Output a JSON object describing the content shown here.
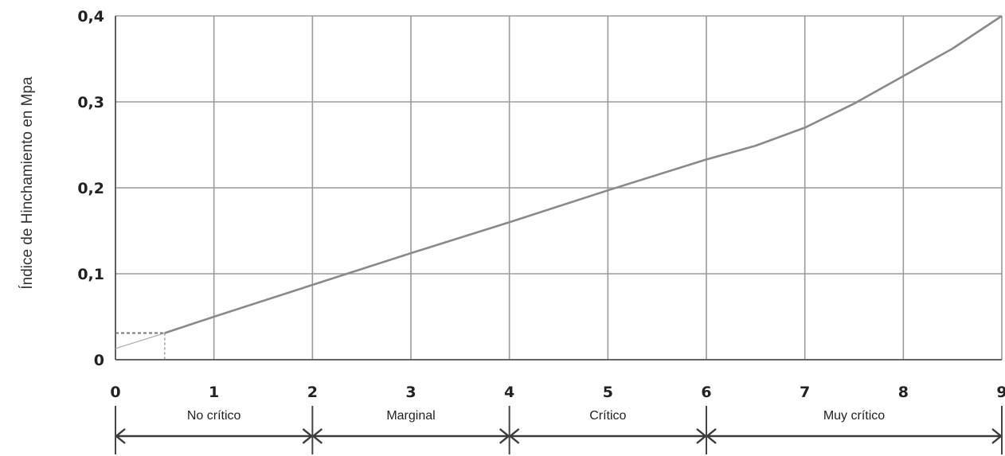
{
  "chart_data": {
    "type": "line",
    "title": "",
    "xlabel": "",
    "ylabel": "Índice de Hinchamiento en Mpa",
    "xlim": [
      0,
      9
    ],
    "ylim": [
      0,
      0.4
    ],
    "grid": true,
    "x_ticks": [
      "0",
      "1",
      "2",
      "3",
      "4",
      "5",
      "6",
      "7",
      "8",
      "9"
    ],
    "y_ticks": [
      "0",
      "0,1",
      "0,2",
      "0,3",
      "0,4"
    ],
    "series": [
      {
        "x": [
          0.5,
          1,
          2,
          3,
          4,
          5,
          6,
          6.5,
          7,
          7.5,
          8,
          8.5,
          9
        ],
        "y": [
          0.031,
          0.05,
          0.087,
          0.124,
          0.16,
          0.197,
          0.233,
          0.249,
          0.27,
          0.298,
          0.33,
          0.362,
          0.4
        ]
      }
    ],
    "guide_point": {
      "x": 0.5,
      "y": 0.031
    },
    "categories": [
      {
        "label": "No crítico",
        "from": 0,
        "to": 2
      },
      {
        "label": "Marginal",
        "from": 2,
        "to": 4
      },
      {
        "label": "Crítico",
        "from": 4,
        "to": 6
      },
      {
        "label": "Muy crítico",
        "from": 6,
        "to": 9
      }
    ],
    "colors": {
      "grid": "#9a9a9a",
      "line": "#8a8a8a",
      "text": "#222222",
      "arrow": "#3a3a3a"
    }
  }
}
